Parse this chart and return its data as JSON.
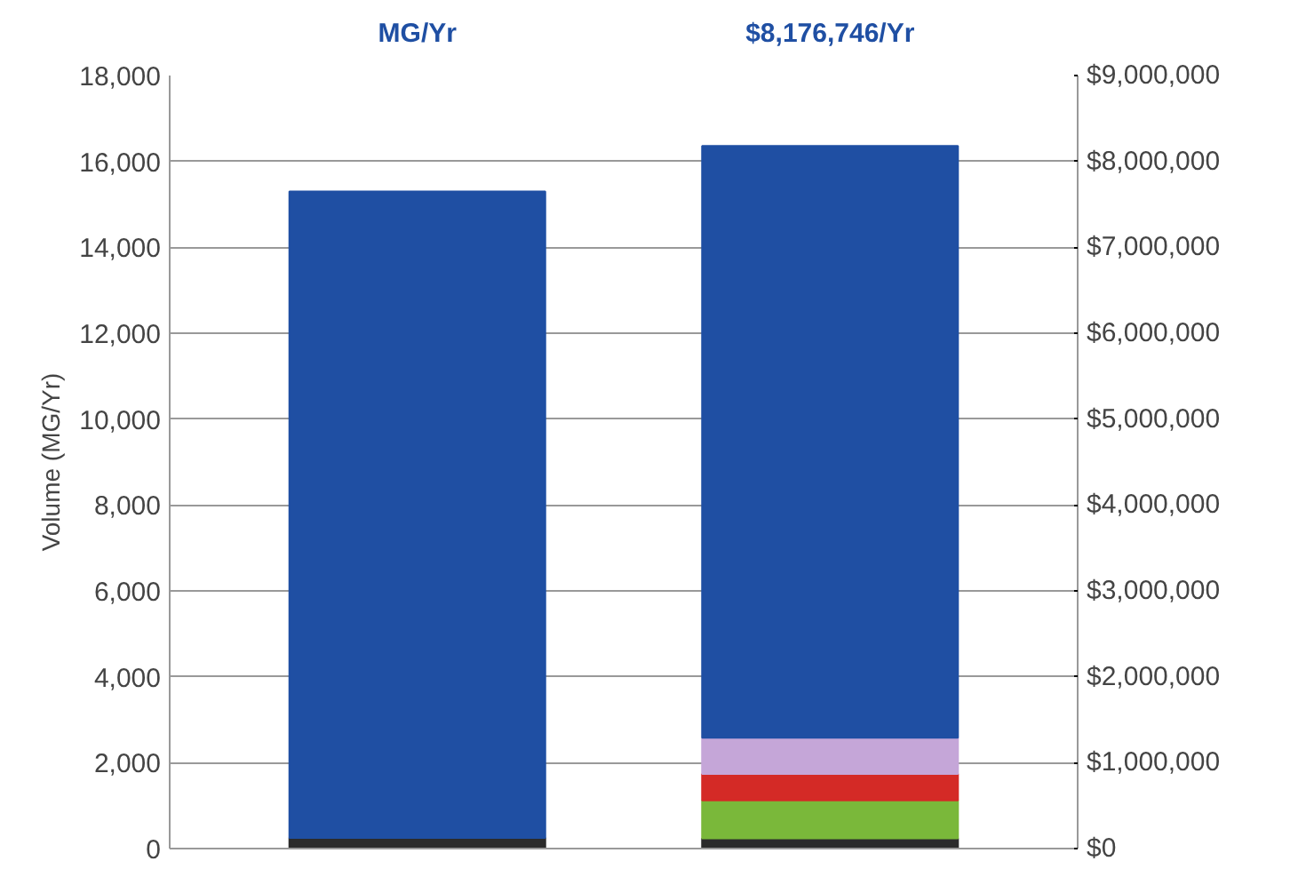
{
  "chart_data": {
    "type": "bar",
    "stacked": true,
    "ylabel": "Volume (MG/Yr)",
    "categories": [
      null,
      null
    ],
    "series": [
      {
        "color": "#2b2b2b",
        "values": [
          250,
          null
        ]
      },
      {
        "color": "#1f4fa3",
        "values": [
          15050,
          null
        ]
      },
      {
        "color": "#2b2b2b",
        "values": [
          null,
          120000
        ],
        "axis": "y2"
      },
      {
        "color": "#7ab83a",
        "values": [
          null,
          440000
        ],
        "axis": "y2"
      },
      {
        "color": "#d42a26",
        "values": [
          null,
          310000
        ],
        "axis": "y2"
      },
      {
        "color": "#c5a6d8",
        "values": [
          null,
          420000
        ],
        "axis": "y2"
      },
      {
        "color": "#1f4fa3",
        "values": [
          null,
          6890000
        ],
        "axis": "y2"
      }
    ],
    "annotations": [
      "MG/Yr",
      "$8,176,746/Yr"
    ],
    "ylim": [
      0,
      18000
    ],
    "yticks": [
      {
        "value": 0,
        "label": "0"
      },
      {
        "value": 2000,
        "label": "2,000"
      },
      {
        "value": 4000,
        "label": "4,000"
      },
      {
        "value": 6000,
        "label": "6,000"
      },
      {
        "value": 8000,
        "label": "8,000"
      },
      {
        "value": 10000,
        "label": "10,000"
      },
      {
        "value": 12000,
        "label": "12,000"
      },
      {
        "value": 14000,
        "label": "14,000"
      },
      {
        "value": 16000,
        "label": "16,000"
      },
      {
        "value": 18000,
        "label": "18,000"
      }
    ],
    "y2lim": [
      0,
      9000000
    ],
    "y2ticks": [
      {
        "value": 0,
        "label": "$0"
      },
      {
        "value": 1000000,
        "label": "$1,000,000"
      },
      {
        "value": 2000000,
        "label": "$2,000,000"
      },
      {
        "value": 3000000,
        "label": "$3,000,000"
      },
      {
        "value": 4000000,
        "label": "$4,000,000"
      },
      {
        "value": 5000000,
        "label": "$5,000,000"
      },
      {
        "value": 6000000,
        "label": "$6,000,000"
      },
      {
        "value": 7000000,
        "label": "$7,000,000"
      },
      {
        "value": 8000000,
        "label": "$8,000,000"
      },
      {
        "value": 9000000,
        "label": "$9,000,000"
      }
    ],
    "grid": "y"
  }
}
